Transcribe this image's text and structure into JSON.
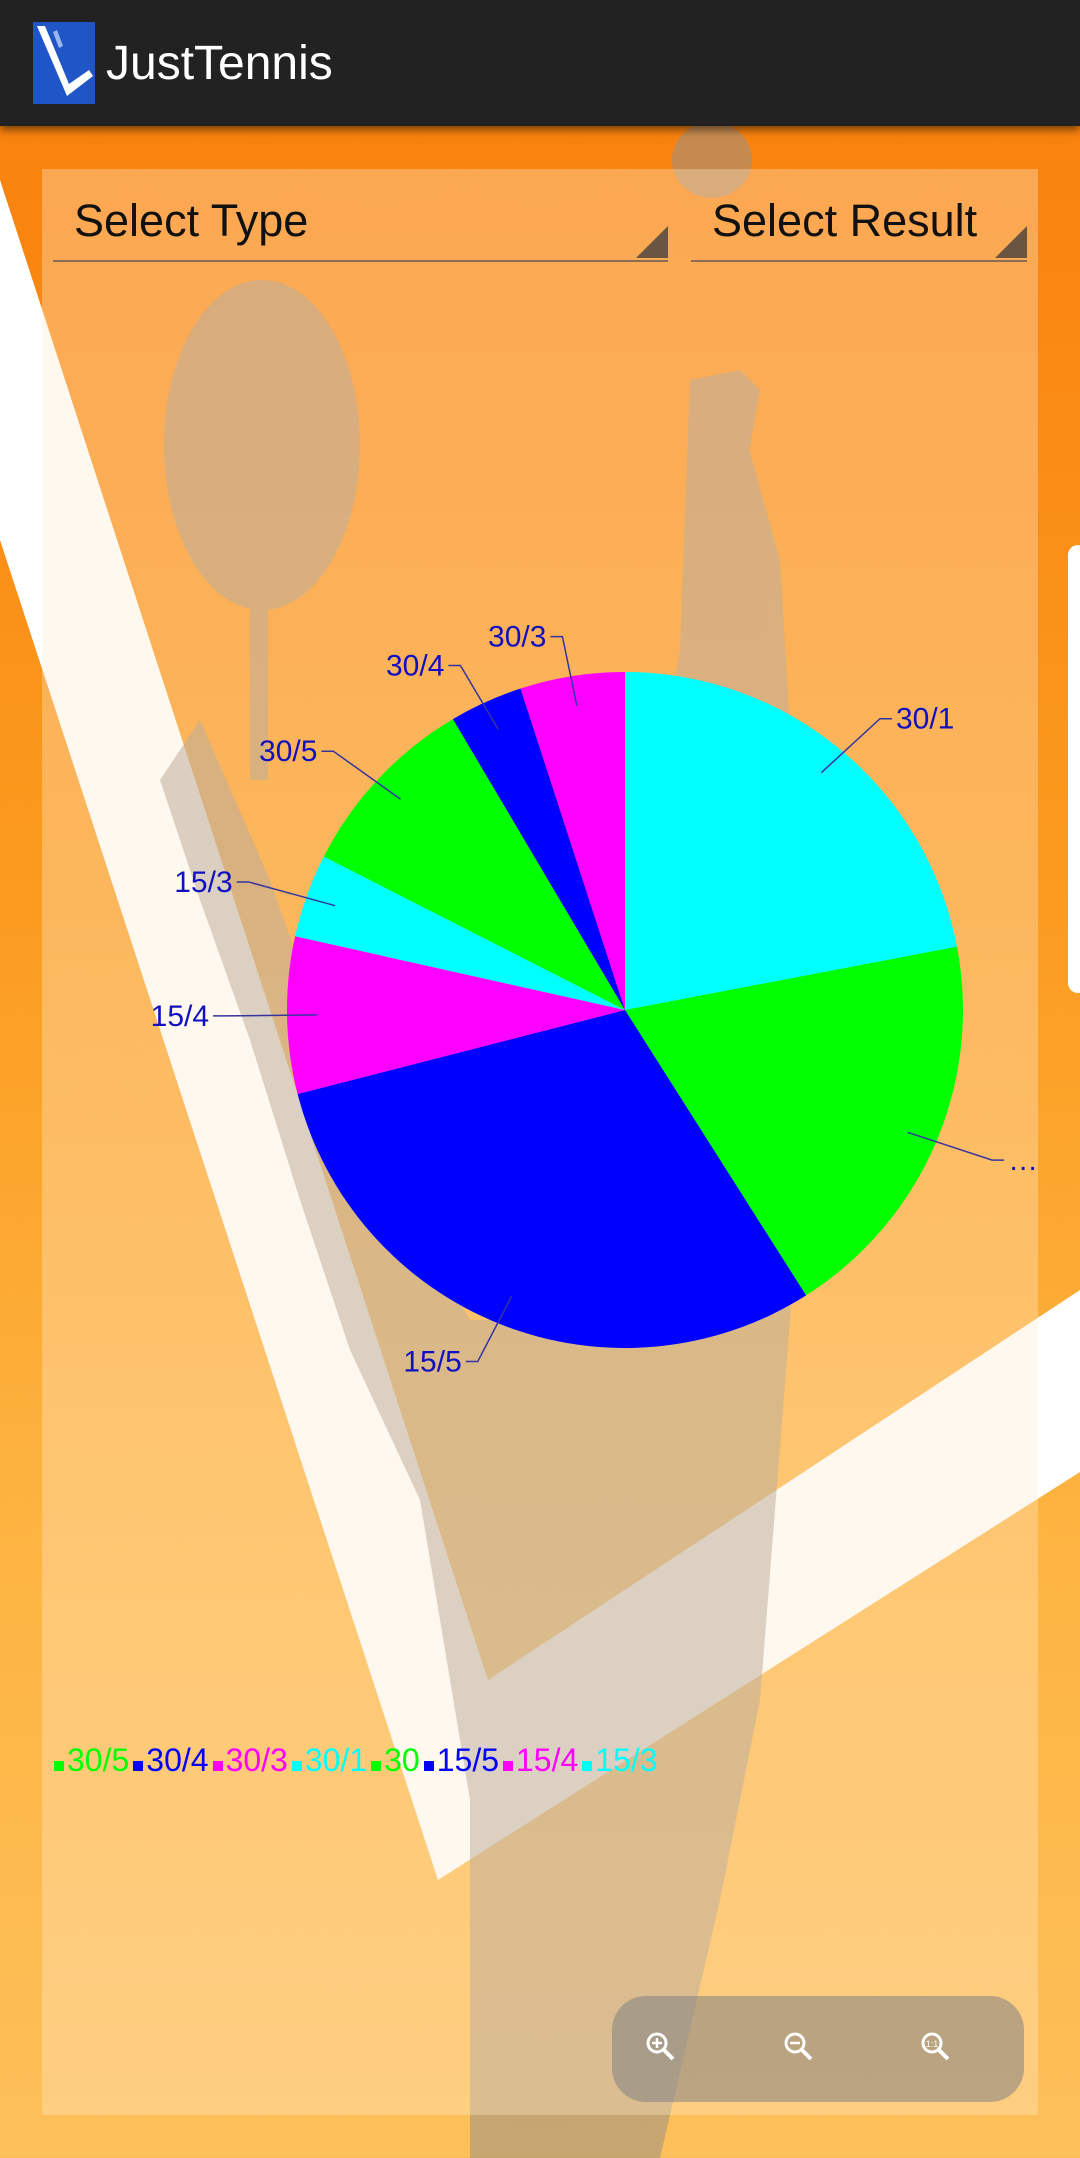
{
  "app": {
    "title": "JustTennis",
    "logo_icon": "tennis-court-icon"
  },
  "filters": {
    "type_label": "Select Type",
    "result_label": "Select Result"
  },
  "chart_data": {
    "type": "pie",
    "categories": [
      "30/1",
      "…",
      "15/5",
      "15/4",
      "15/3",
      "30/5",
      "30/4",
      "30/3"
    ],
    "values": [
      22,
      19,
      30,
      7.5,
      4,
      9,
      3.5,
      5
    ],
    "colors": [
      "#00ffff",
      "#00ff00",
      "#0000ff",
      "#ff00ff",
      "#00ffff",
      "#00ff00",
      "#0000ff",
      "#ff00ff"
    ],
    "label_color": "#1010c0"
  },
  "legend": [
    {
      "label": "30/5",
      "color": "#00ff00"
    },
    {
      "label": "30/4",
      "color": "#0000ff"
    },
    {
      "label": "30/3",
      "color": "#ff00ff"
    },
    {
      "label": "30/1",
      "color": "#00ffff"
    },
    {
      "label": "30",
      "color": "#00ff00"
    },
    {
      "label": "15/5",
      "color": "#0000ff"
    },
    {
      "label": "15/4",
      "color": "#ff00ff"
    },
    {
      "label": "15/3",
      "color": "#00ffff"
    }
  ],
  "zoom": {
    "zoom_in_icon": "zoom-in-icon",
    "zoom_out_icon": "zoom-out-icon",
    "zoom_reset_icon": "zoom-reset-icon"
  }
}
